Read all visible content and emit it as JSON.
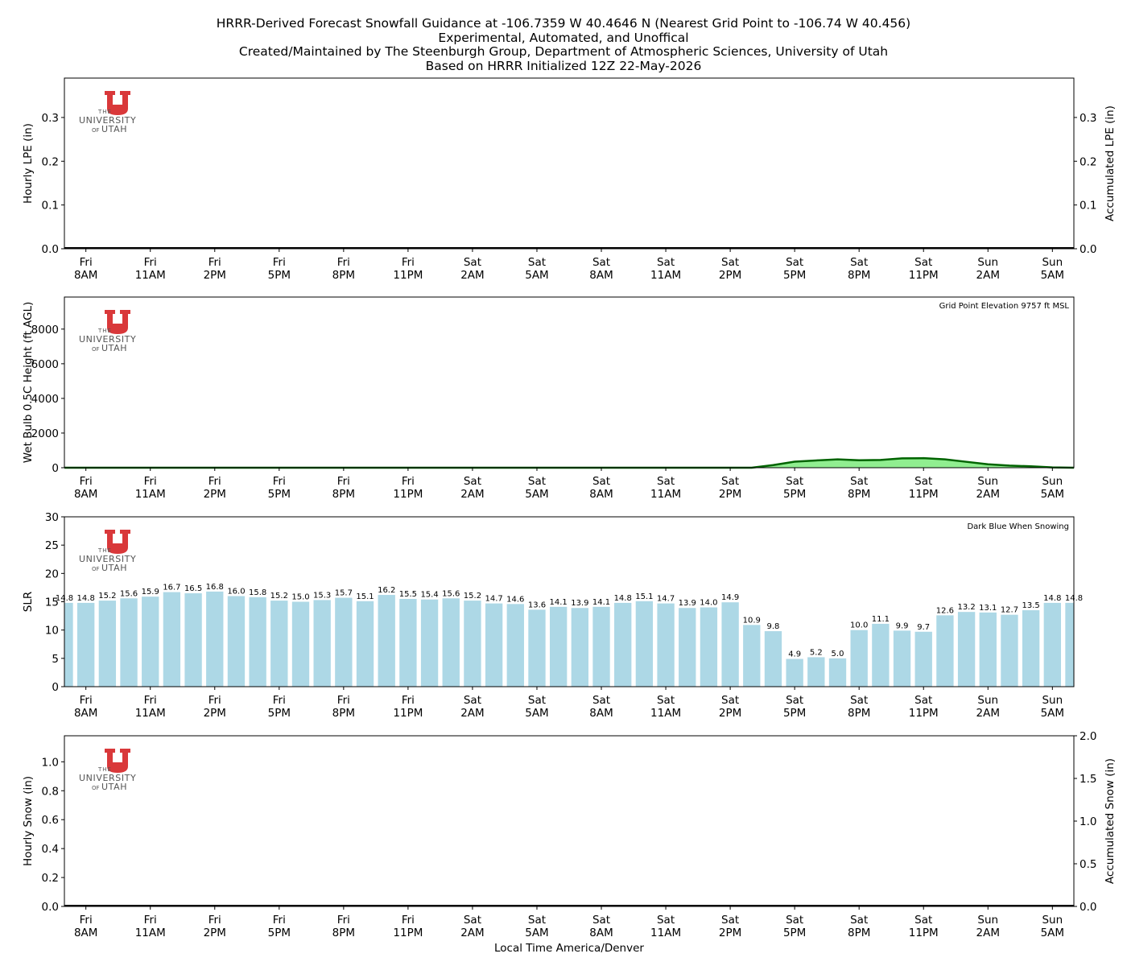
{
  "title_lines": [
    "HRRR-Derived Forecast Snowfall Guidance at -106.7359 W 40.4646 N (Nearest Grid Point to -106.74 W 40.456)",
    "Experimental, Automated, and Unoffical",
    "Created/Maintained by The Steenburgh Group, Department of Atmospheric Sciences, University of Utah",
    "Based on HRRR Initialized 12Z 22-May-2026"
  ],
  "logo": {
    "line1": "THE",
    "line2": "UNIVERSITY",
    "line3_a": "OF",
    "line3_b": "UTAH",
    "color": "#d9383a",
    "text_color": "#555555"
  },
  "x_axis": {
    "hours_range": [
      -1,
      46
    ],
    "tick_hours": [
      0,
      3,
      6,
      9,
      12,
      15,
      18,
      21,
      24,
      27,
      30,
      33,
      36,
      39,
      42,
      45
    ],
    "tick_day_labels": [
      "Fri",
      "Fri",
      "Fri",
      "Fri",
      "Fri",
      "Fri",
      "Sat",
      "Sat",
      "Sat",
      "Sat",
      "Sat",
      "Sat",
      "Sat",
      "Sat",
      "Sun",
      "Sun"
    ],
    "tick_time_labels": [
      "8AM",
      "11AM",
      "2PM",
      "5PM",
      "8PM",
      "11PM",
      "2AM",
      "5AM",
      "8AM",
      "11AM",
      "2PM",
      "5PM",
      "8PM",
      "11PM",
      "2AM",
      "5AM"
    ],
    "xlabel": "Local Time America/Denver",
    "first_bar_hour": -1
  },
  "chart_data": [
    {
      "type": "bar",
      "id": "lpe",
      "ylabel": "Hourly LPE (in)",
      "ylabel_right": "Accumulated LPE (in)",
      "ylim": [
        0,
        0.39
      ],
      "yticks": [
        "0.0",
        "0.1",
        "0.2",
        "0.3"
      ],
      "ytick_values": [
        0,
        0.1,
        0.2,
        0.3
      ],
      "yticks_right": [
        "0.0",
        "0.1",
        "0.2",
        "0.3"
      ],
      "ytick_right_values": [
        0,
        0.1,
        0.2,
        0.3
      ],
      "series": [
        {
          "kind": "hourly",
          "values": []
        },
        {
          "kind": "accumulated",
          "values": [
            0.0,
            0.0
          ]
        }
      ]
    },
    {
      "type": "area",
      "id": "wetbulb",
      "ylabel": "Wet Bulb 0.5C Height (ft AGL)",
      "annotation": "Grid Point Elevation 9757 ft MSL",
      "ylim": [
        0,
        9850
      ],
      "yticks": [
        "0",
        "2000",
        "4000",
        "6000",
        "8000"
      ],
      "ytick_values": [
        0,
        2000,
        4000,
        6000,
        8000
      ],
      "fill_color": "#90ee90",
      "line_color": "#006400",
      "x": [
        -1,
        30,
        31,
        32,
        33,
        34,
        35,
        36,
        37,
        38,
        39,
        40,
        41,
        42,
        43,
        44,
        45,
        46
      ],
      "y": [
        0,
        0,
        0,
        150,
        350,
        420,
        480,
        430,
        450,
        540,
        550,
        480,
        340,
        200,
        120,
        80,
        20,
        0
      ]
    },
    {
      "type": "bar",
      "id": "slr",
      "ylabel": "SLR",
      "annotation": "Dark Blue When Snowing",
      "ylim": [
        0,
        30
      ],
      "yticks": [
        "0",
        "5",
        "10",
        "15",
        "20",
        "25",
        "30"
      ],
      "ytick_values": [
        0,
        5,
        10,
        15,
        20,
        25,
        30
      ],
      "bar_color": "#add8e6",
      "values": [
        14.8,
        14.8,
        15.2,
        15.6,
        15.9,
        16.7,
        16.5,
        16.8,
        16.0,
        15.8,
        15.2,
        15.0,
        15.3,
        15.7,
        15.1,
        16.2,
        15.5,
        15.4,
        15.6,
        15.2,
        14.7,
        14.6,
        13.6,
        14.1,
        13.9,
        14.1,
        14.8,
        15.1,
        14.7,
        13.9,
        14.0,
        14.9,
        10.9,
        9.8,
        4.9,
        5.2,
        5.0,
        10.0,
        11.1,
        9.9,
        9.7,
        12.6,
        13.2,
        13.1,
        12.7,
        13.5,
        14.8,
        14.8
      ],
      "labels": [
        "14.8",
        "14.8",
        "15.2",
        "15.6",
        "15.9",
        "16.7",
        "16.5",
        "16.8",
        "16.0",
        "15.8",
        "15.2",
        "15.0",
        "15.3",
        "15.7",
        "15.1",
        "16.2",
        "15.5",
        "15.4",
        "15.6",
        "15.2",
        "14.7",
        "14.6",
        "13.6",
        "14.1",
        "13.9",
        "14.1",
        "14.8",
        "15.1",
        "14.7",
        "13.9",
        "14.0",
        "14.9",
        "10.9",
        "9.8",
        "4.9",
        "5.2",
        "5.0",
        "10.0",
        "11.1",
        "9.9",
        "9.7",
        "12.6",
        "13.2",
        "13.1",
        "12.7",
        "13.5",
        "14.8",
        "14.8"
      ]
    },
    {
      "type": "bar",
      "id": "snow",
      "ylabel": "Hourly Snow (in)",
      "ylabel_right": "Accumulated Snow (in)",
      "ylim": [
        0,
        1.18
      ],
      "yticks": [
        "0.0",
        "0.2",
        "0.4",
        "0.6",
        "0.8",
        "1.0"
      ],
      "ytick_values": [
        0,
        0.2,
        0.4,
        0.6,
        0.8,
        1.0
      ],
      "ylim_right": [
        0,
        2.0
      ],
      "yticks_right": [
        "0.0",
        "0.5",
        "1.0",
        "1.5",
        "2.0"
      ],
      "ytick_right_values": [
        0,
        0.5,
        1.0,
        1.5,
        2.0
      ],
      "series": [
        {
          "kind": "hourly",
          "values": []
        },
        {
          "kind": "accumulated",
          "values": [
            0.0,
            0.0
          ]
        }
      ]
    }
  ]
}
